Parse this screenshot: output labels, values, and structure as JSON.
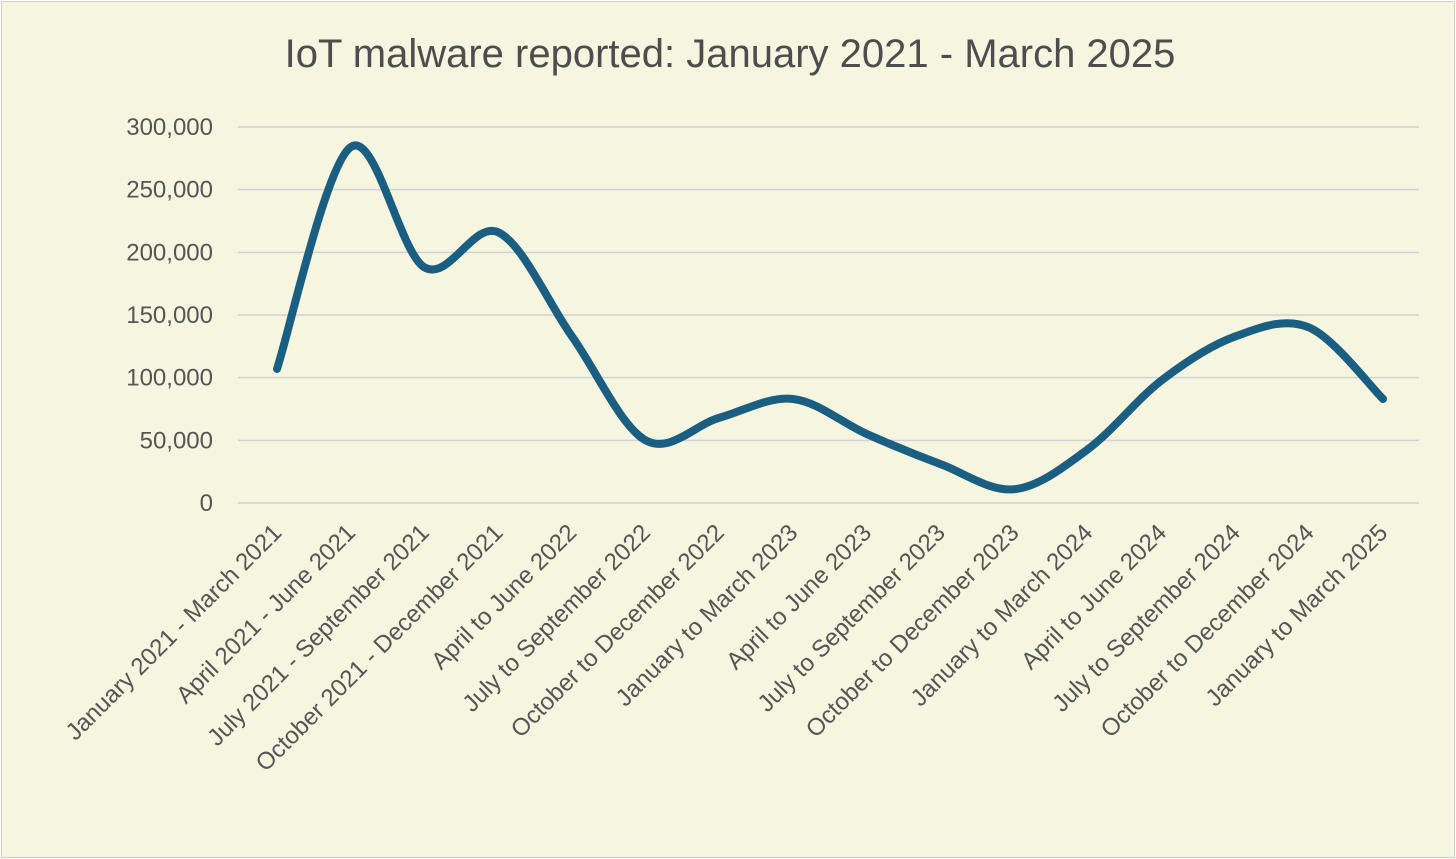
{
  "chart_data": {
    "type": "line",
    "title": "IoT malware reported: January 2021 - March 2025",
    "xlabel": "",
    "ylabel": "",
    "ylim": [
      0,
      300000
    ],
    "yticks": [
      0,
      50000,
      100000,
      150000,
      200000,
      250000,
      300000
    ],
    "ytick_labels": [
      "0",
      "50,000",
      "100,000",
      "150,000",
      "200,000",
      "250,000",
      "300,000"
    ],
    "grid": true,
    "legend": "none",
    "categories": [
      "January 2021 - March 2021",
      "April 2021 - June 2021",
      "July 2021 - September 2021",
      "October 2021 - December 2021",
      "April to June 2022",
      "July to September 2022",
      "October to December 2022",
      "January to March 2023",
      "April to June 2023",
      "July to September 2023",
      "October to December 2023",
      "January to March 2024",
      "April to June 2024",
      "July to September 2024",
      "October to December 2024",
      "January to March 2025"
    ],
    "series": [
      {
        "name": "IoT malware reported",
        "color": "#1a5e82",
        "values": [
          107000,
          284000,
          188000,
          216000,
          133000,
          50000,
          68000,
          83000,
          55000,
          31000,
          11000,
          43000,
          98000,
          133000,
          140000,
          83000
        ]
      }
    ]
  }
}
